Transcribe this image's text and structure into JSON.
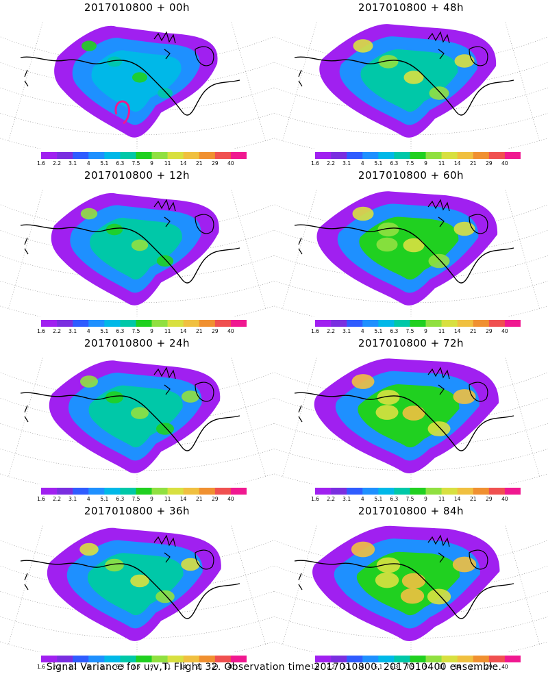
{
  "footer_caption": "Signal Variance for u,v,T. Flight 32. Observation time 2017010800. 2017010400 ensemble.",
  "colorbar": {
    "labels": [
      "1.6",
      "2.2",
      "3.1",
      "4",
      "5.1",
      "6.3",
      "7.5",
      "9",
      "11",
      "14",
      "21",
      "29",
      "40"
    ],
    "colors": [
      "#a020f0",
      "#7a2ee0",
      "#2f5cff",
      "#1e90ff",
      "#00b8e8",
      "#00c8a8",
      "#20d020",
      "#90e040",
      "#d8e040",
      "#f0c040",
      "#f09030",
      "#f05050",
      "#f01890"
    ]
  },
  "panels": [
    {
      "title": "2017010800 + 00h",
      "intensity": 0.1
    },
    {
      "title": "2017010800 + 48h",
      "intensity": 0.45
    },
    {
      "title": "2017010800 + 12h",
      "intensity": 0.22
    },
    {
      "title": "2017010800 + 60h",
      "intensity": 0.55
    },
    {
      "title": "2017010800 + 24h",
      "intensity": 0.3
    },
    {
      "title": "2017010800 + 72h",
      "intensity": 0.65
    },
    {
      "title": "2017010800 + 36h",
      "intensity": 0.38
    },
    {
      "title": "2017010800 + 84h",
      "intensity": 0.72
    }
  ]
}
